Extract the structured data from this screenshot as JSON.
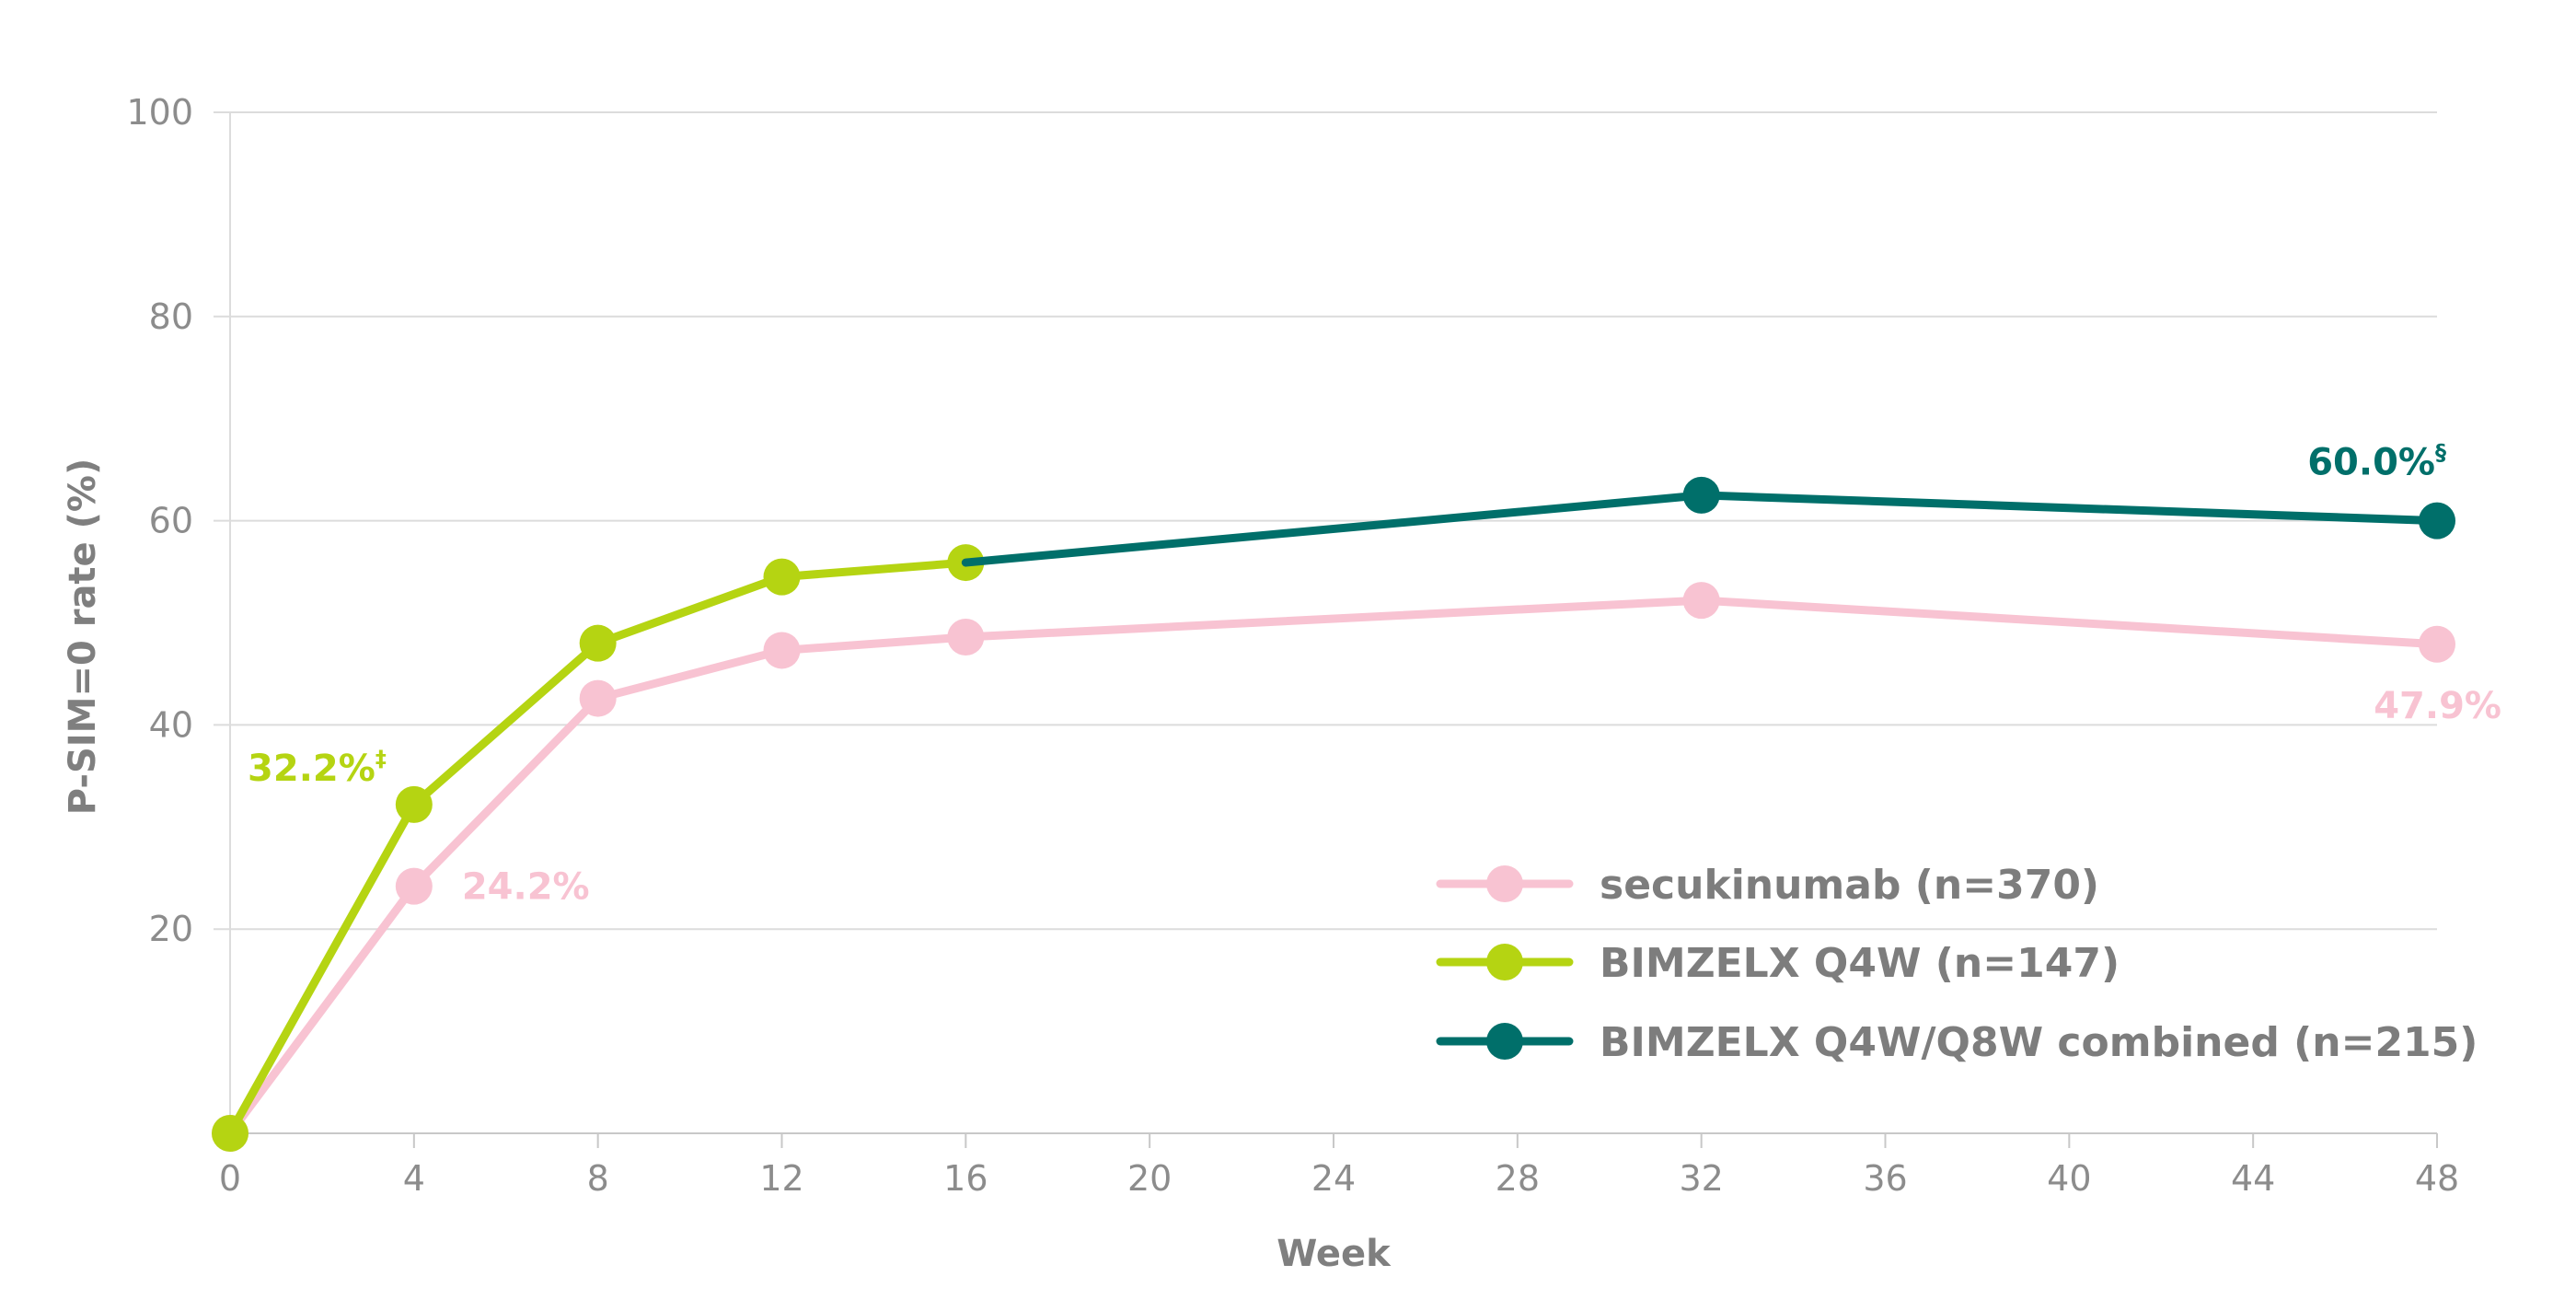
{
  "chart_data": {
    "type": "line",
    "xlabel": "Week",
    "ylabel": "P-SIM=0 rate (%)",
    "xlim": [
      0,
      48
    ],
    "ylim": [
      0,
      100
    ],
    "x_ticks": [
      "0",
      "4",
      "8",
      "12",
      "16",
      "20",
      "24",
      "28",
      "32",
      "36",
      "40",
      "44",
      "48"
    ],
    "y_ticks": [
      "20",
      "40",
      "60",
      "80",
      "100"
    ],
    "grid": "horizontal",
    "legend_position": "bottom-right",
    "series": [
      {
        "name": "secukinumab (n=370)",
        "color": "#f8c3d2",
        "points": [
          [
            0,
            0
          ],
          [
            4,
            24.2
          ],
          [
            8,
            42.6
          ],
          [
            12,
            47.3
          ],
          [
            16,
            48.6
          ],
          [
            32,
            52.2
          ],
          [
            48,
            47.9
          ]
        ]
      },
      {
        "name": "BIMZELX Q4W (n=147)",
        "color": "#b5d412",
        "points": [
          [
            0,
            0
          ],
          [
            4,
            32.2
          ],
          [
            8,
            48.0
          ],
          [
            12,
            54.5
          ],
          [
            16,
            55.9
          ]
        ]
      },
      {
        "name": "BIMZELX Q4W/Q8W combined (n=215)",
        "color": "#006f6a",
        "points": [
          [
            16,
            55.9
          ],
          [
            32,
            62.5
          ],
          [
            48,
            60.0
          ]
        ]
      }
    ],
    "annotations": [
      {
        "text": "32.2%",
        "superscript": "‡",
        "color": "#b5d412",
        "x": 4,
        "y": 32.2,
        "anchor": "upper-left"
      },
      {
        "text": "24.2%",
        "superscript": "",
        "color": "#f8c3d2",
        "x": 4,
        "y": 24.2,
        "anchor": "right"
      },
      {
        "text": "60.0%",
        "superscript": "§",
        "color": "#006f6a",
        "x": 48,
        "y": 60.0,
        "anchor": "above"
      },
      {
        "text": "47.9%",
        "superscript": "",
        "color": "#f8c3d2",
        "x": 48,
        "y": 47.9,
        "anchor": "below"
      }
    ]
  }
}
